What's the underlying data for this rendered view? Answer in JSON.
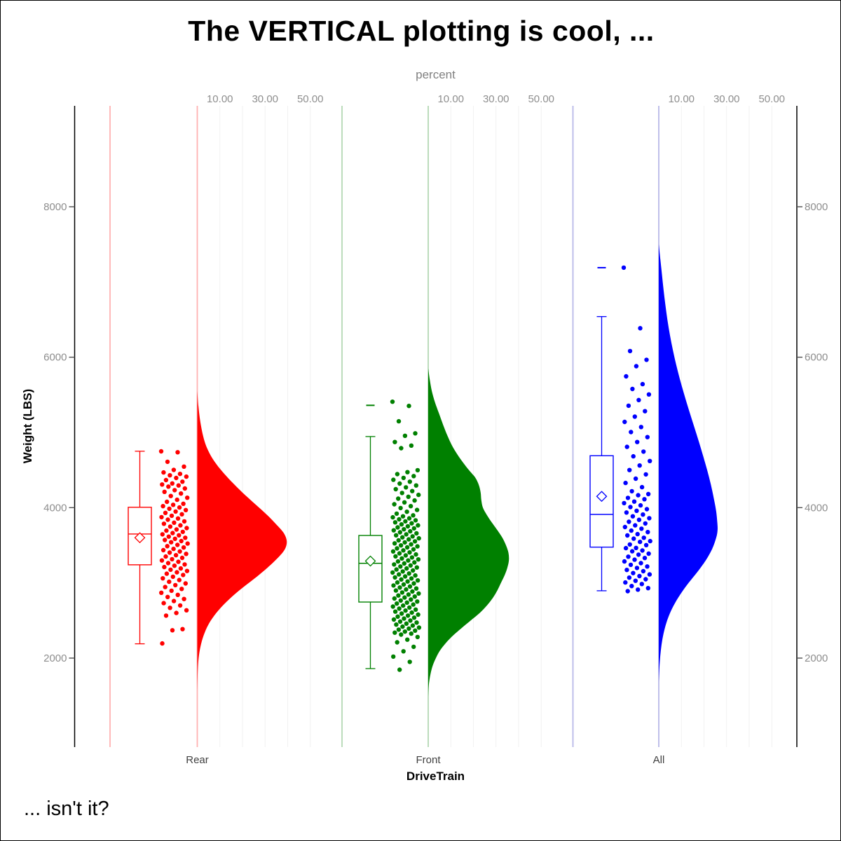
{
  "title": "The VERTICAL plotting is cool, ...",
  "footnote": "... isn't it?",
  "chart_data": {
    "type": "raincloud (half-violin density + box plot + jittered points, vertical)",
    "x_axis": {
      "label": "DriveTrain",
      "categories": [
        "Rear",
        "Front",
        "All"
      ]
    },
    "y_axis": {
      "label": "Weight (LBS)",
      "range_approx": [
        800,
        9350
      ],
      "ticks": [
        {
          "value": 2000,
          "label": "2000"
        },
        {
          "value": 4000,
          "label": "4000"
        },
        {
          "value": 6000,
          "label": "6000"
        },
        {
          "value": 8000,
          "label": "8000"
        }
      ]
    },
    "top_axis": {
      "label": "percent",
      "grid_values": [
        10,
        20,
        30,
        40,
        50
      ],
      "labeled_ticks": [
        {
          "value": 10,
          "label": "10.00"
        },
        {
          "value": 30,
          "label": "30.00"
        },
        {
          "value": 50,
          "label": "50.00"
        }
      ]
    },
    "style": {
      "grid_color": "#f1f1f1",
      "axis_line_color": "#000000",
      "tick_color": "#4d4d4d",
      "axis_text_color": "#8e8e8e",
      "category_label_color": "#404040",
      "box_fill": "#ffffff"
    },
    "groups": [
      {
        "name": "Rear",
        "color": "#ff0000",
        "tint": "#ffb2b2",
        "box": {
          "whisker_low": 2190,
          "q1": 3240,
          "median": 3650,
          "mean": 3600,
          "q3": 4005,
          "whisker_high": 4750,
          "outliers": []
        },
        "density": [
          [
            5550,
            0
          ],
          [
            5350,
            0.5
          ],
          [
            5150,
            1.3
          ],
          [
            4950,
            2.6
          ],
          [
            4800,
            4.2
          ],
          [
            4650,
            6.8
          ],
          [
            4500,
            10.5
          ],
          [
            4350,
            15
          ],
          [
            4200,
            20
          ],
          [
            4050,
            25.5
          ],
          [
            3900,
            31
          ],
          [
            3750,
            35.8
          ],
          [
            3650,
            38.5
          ],
          [
            3550,
            39.6
          ],
          [
            3450,
            38.8
          ],
          [
            3350,
            36.2
          ],
          [
            3200,
            31
          ],
          [
            3050,
            25
          ],
          [
            2900,
            18.6
          ],
          [
            2750,
            13
          ],
          [
            2600,
            8.4
          ],
          [
            2450,
            5
          ],
          [
            2300,
            2.8
          ],
          [
            2150,
            1.4
          ],
          [
            2000,
            0.6
          ],
          [
            1850,
            0.25
          ],
          [
            1700,
            0.08
          ],
          [
            1560,
            0
          ]
        ],
        "weights": [
          4748,
          4736,
          4610,
          4545,
          4502,
          4468,
          4448,
          4430,
          4412,
          4394,
          4366,
          4345,
          4322,
          4308,
          4295,
          4280,
          4255,
          4232,
          4210,
          4188,
          4155,
          4132,
          4105,
          4078,
          4052,
          4038,
          4020,
          4002,
          3985,
          3968,
          3948,
          3930,
          3912,
          3892,
          3874,
          3856,
          3840,
          3818,
          3800,
          3786,
          3765,
          3748,
          3728,
          3710,
          3695,
          3678,
          3662,
          3645,
          3632,
          3615,
          3600,
          3586,
          3570,
          3556,
          3540,
          3522,
          3505,
          3488,
          3470,
          3452,
          3435,
          3418,
          3402,
          3385,
          3368,
          3350,
          3332,
          3315,
          3298,
          3280,
          3262,
          3245,
          3228,
          3210,
          3192,
          3175,
          3158,
          3140,
          3122,
          3105,
          3082,
          3060,
          3038,
          3015,
          2992,
          2970,
          2945,
          2920,
          2895,
          2868,
          2840,
          2812,
          2785,
          2758,
          2730,
          2700,
          2668,
          2635,
          2600,
          2565,
          2385,
          2370,
          2195
        ]
      },
      {
        "name": "Front",
        "color": "#008000",
        "tint": "#b5d9b5",
        "box": {
          "whisker_low": 1860,
          "q1": 2745,
          "median": 3260,
          "mean": 3290,
          "q3": 3630,
          "whisker_high": 4945,
          "outliers": [
            5360
          ]
        },
        "density": [
          [
            5850,
            0
          ],
          [
            5700,
            0.7
          ],
          [
            5550,
            1.6
          ],
          [
            5400,
            3
          ],
          [
            5250,
            4.8
          ],
          [
            5100,
            6.6
          ],
          [
            4950,
            8.6
          ],
          [
            4800,
            11
          ],
          [
            4650,
            14.2
          ],
          [
            4500,
            18
          ],
          [
            4400,
            20.8
          ],
          [
            4300,
            22.4
          ],
          [
            4200,
            23.2
          ],
          [
            4100,
            23.5
          ],
          [
            4000,
            24.2
          ],
          [
            3900,
            26
          ],
          [
            3800,
            28.2
          ],
          [
            3700,
            30.6
          ],
          [
            3600,
            32.8
          ],
          [
            3500,
            34.4
          ],
          [
            3400,
            35.5
          ],
          [
            3300,
            35.7
          ],
          [
            3200,
            35
          ],
          [
            3100,
            33.8
          ],
          [
            3000,
            32.2
          ],
          [
            2900,
            30.6
          ],
          [
            2800,
            28.6
          ],
          [
            2700,
            26
          ],
          [
            2600,
            22.8
          ],
          [
            2500,
            18.8
          ],
          [
            2400,
            14.8
          ],
          [
            2300,
            11
          ],
          [
            2200,
            7.8
          ],
          [
            2100,
            5.2
          ],
          [
            2000,
            3.4
          ],
          [
            1900,
            2
          ],
          [
            1800,
            1.1
          ],
          [
            1700,
            0.5
          ],
          [
            1600,
            0.15
          ],
          [
            1480,
            0
          ]
        ],
        "weights": [
          5408,
          5352,
          5148,
          4988,
          4955,
          4872,
          4825,
          4790,
          4498,
          4472,
          4446,
          4420,
          4395,
          4370,
          4345,
          4320,
          4295,
          4270,
          4245,
          4220,
          4195,
          4170,
          4145,
          4120,
          4095,
          4070,
          4045,
          4020,
          3995,
          3970,
          3945,
          3920,
          3898,
          3885,
          3872,
          3858,
          3845,
          3832,
          3818,
          3805,
          3792,
          3778,
          3765,
          3752,
          3738,
          3725,
          3712,
          3698,
          3685,
          3672,
          3658,
          3645,
          3632,
          3618,
          3605,
          3592,
          3578,
          3565,
          3552,
          3538,
          3525,
          3512,
          3498,
          3485,
          3472,
          3458,
          3445,
          3432,
          3418,
          3405,
          3392,
          3378,
          3365,
          3352,
          3338,
          3325,
          3312,
          3298,
          3285,
          3272,
          3258,
          3245,
          3232,
          3218,
          3205,
          3192,
          3178,
          3165,
          3152,
          3138,
          3125,
          3112,
          3098,
          3085,
          3072,
          3058,
          3045,
          3032,
          3018,
          3005,
          2992,
          2978,
          2965,
          2952,
          2938,
          2925,
          2912,
          2898,
          2885,
          2872,
          2858,
          2845,
          2832,
          2818,
          2805,
          2792,
          2778,
          2765,
          2752,
          2738,
          2725,
          2712,
          2698,
          2685,
          2672,
          2658,
          2645,
          2632,
          2618,
          2605,
          2592,
          2578,
          2565,
          2552,
          2538,
          2525,
          2512,
          2498,
          2485,
          2472,
          2458,
          2445,
          2432,
          2418,
          2405,
          2392,
          2378,
          2365,
          2352,
          2338,
          2325,
          2312,
          2280,
          2245,
          2210,
          2150,
          2090,
          2020,
          1950,
          1845
        ]
      },
      {
        "name": "All",
        "color": "#0000ff",
        "tint": "#b8b8e8",
        "box": {
          "whisker_low": 2895,
          "q1": 3475,
          "median": 3910,
          "mean": 4150,
          "q3": 4690,
          "whisker_high": 6540,
          "outliers": [
            7190
          ]
        },
        "density": [
          [
            7500,
            0
          ],
          [
            7300,
            0.7
          ],
          [
            7100,
            1.4
          ],
          [
            6900,
            2.1
          ],
          [
            6700,
            2.9
          ],
          [
            6500,
            3.8
          ],
          [
            6300,
            4.9
          ],
          [
            6100,
            6.2
          ],
          [
            5900,
            7.7
          ],
          [
            5700,
            9.4
          ],
          [
            5500,
            11.3
          ],
          [
            5300,
            13.3
          ],
          [
            5100,
            15.4
          ],
          [
            4900,
            17.5
          ],
          [
            4700,
            19.5
          ],
          [
            4500,
            21.4
          ],
          [
            4300,
            23.1
          ],
          [
            4100,
            24.5
          ],
          [
            3950,
            25.4
          ],
          [
            3800,
            25.9
          ],
          [
            3700,
            26
          ],
          [
            3600,
            25.4
          ],
          [
            3450,
            23.6
          ],
          [
            3300,
            20.8
          ],
          [
            3150,
            17.2
          ],
          [
            3000,
            13.2
          ],
          [
            2850,
            9.6
          ],
          [
            2700,
            6.6
          ],
          [
            2550,
            4.3
          ],
          [
            2400,
            2.7
          ],
          [
            2250,
            1.6
          ],
          [
            2100,
            0.9
          ],
          [
            1950,
            0.45
          ],
          [
            1800,
            0.15
          ],
          [
            1680,
            0
          ]
        ],
        "weights": [
          7190,
          6385,
          6082,
          5965,
          5880,
          5745,
          5642,
          5578,
          5505,
          5430,
          5355,
          5282,
          5210,
          5140,
          5072,
          5005,
          4938,
          4872,
          4808,
          4745,
          4682,
          4620,
          4560,
          4500,
          4442,
          4385,
          4328,
          4272,
          4218,
          4180,
          4165,
          4130,
          4112,
          4080,
          4060,
          4030,
          4008,
          3980,
          3958,
          3935,
          3908,
          3885,
          3860,
          3838,
          3812,
          3790,
          3765,
          3742,
          3720,
          3695,
          3675,
          3648,
          3630,
          3600,
          3588,
          3555,
          3545,
          3510,
          3502,
          3465,
          3462,
          3430,
          3420,
          3388,
          3375,
          3348,
          3330,
          3308,
          3285,
          3262,
          3240,
          3218,
          3198,
          3172,
          3155,
          3130,
          3112,
          3090,
          3070,
          3048,
          3028,
          3005,
          2985,
          2958,
          2930,
          2910,
          2890
        ]
      }
    ]
  }
}
